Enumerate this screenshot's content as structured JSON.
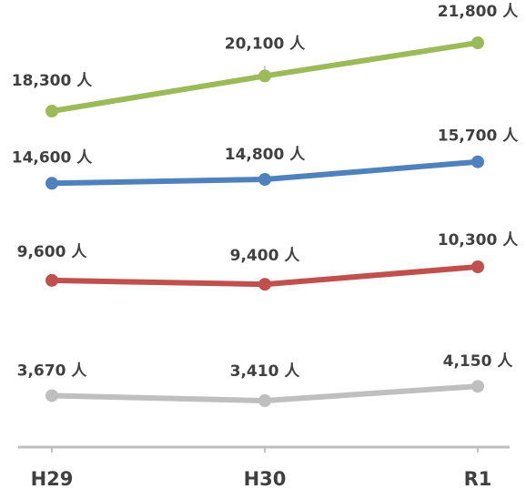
{
  "chart_data": {
    "type": "line",
    "title": "",
    "xlabel": "",
    "ylabel": "",
    "categories": [
      "H29",
      "H30",
      "R1"
    ],
    "series": [
      {
        "color": "#9bbb59",
        "values": [
          18300,
          20100,
          21800
        ],
        "labels": [
          "18,300 人",
          "20,100 人",
          "21,800 人"
        ]
      },
      {
        "color": "#4f81bd",
        "values": [
          14600,
          14800,
          15700
        ],
        "labels": [
          "14,600 人",
          "14,800 人",
          "15,700 人"
        ]
      },
      {
        "color": "#c0504d",
        "values": [
          9600,
          9400,
          10300
        ],
        "labels": [
          "9,600 人",
          "9,400 人",
          "10,300 人"
        ]
      },
      {
        "color": "#bfbfbf",
        "values": [
          3670,
          3410,
          4150
        ],
        "labels": [
          "3,670 人",
          "3,410 人",
          "4,150 人"
        ]
      }
    ],
    "axis_color": "#bfbfbf",
    "grid": false,
    "legend": "none"
  }
}
